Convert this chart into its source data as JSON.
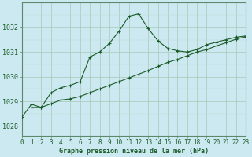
{
  "title": "Graphe pression niveau de la mer (hPa)",
  "background_color": "#cce8f0",
  "grid_color_major": "#a8c8b8",
  "grid_color_minor": "#c0ddd0",
  "line_color": "#1a5c28",
  "border_color": "#5a8a6a",
  "x_min": 0,
  "x_max": 23,
  "y_min": 1027.6,
  "y_max": 1033.0,
  "y_ticks": [
    1028,
    1029,
    1030,
    1031,
    1032
  ],
  "line1_x": [
    0,
    1,
    2,
    3,
    4,
    5,
    6,
    7,
    8,
    9,
    10,
    11,
    12,
    13,
    14,
    15,
    16,
    17,
    18,
    19,
    20,
    21,
    22,
    23
  ],
  "line1_y": [
    1028.35,
    1028.88,
    1028.75,
    1029.35,
    1029.55,
    1029.65,
    1029.8,
    1030.8,
    1031.0,
    1031.35,
    1031.85,
    1032.45,
    1032.55,
    1031.95,
    1031.45,
    1031.15,
    1031.05,
    1031.0,
    1031.1,
    1031.3,
    1031.4,
    1031.5,
    1031.6,
    1031.65
  ],
  "line2_x": [
    1,
    2,
    3,
    4,
    5,
    6,
    7,
    8,
    9,
    10,
    11,
    12,
    13,
    14,
    15,
    16,
    17,
    18,
    19,
    20,
    21,
    22,
    23
  ],
  "line2_y": [
    1028.75,
    1028.75,
    1028.9,
    1029.05,
    1029.1,
    1029.2,
    1029.35,
    1029.5,
    1029.65,
    1029.8,
    1029.95,
    1030.1,
    1030.25,
    1030.42,
    1030.58,
    1030.7,
    1030.85,
    1031.0,
    1031.1,
    1031.25,
    1031.38,
    1031.52,
    1031.62
  ],
  "xlabel_color": "#1a5c28",
  "tick_fontsize": 5.5,
  "label_fontsize": 6.0
}
